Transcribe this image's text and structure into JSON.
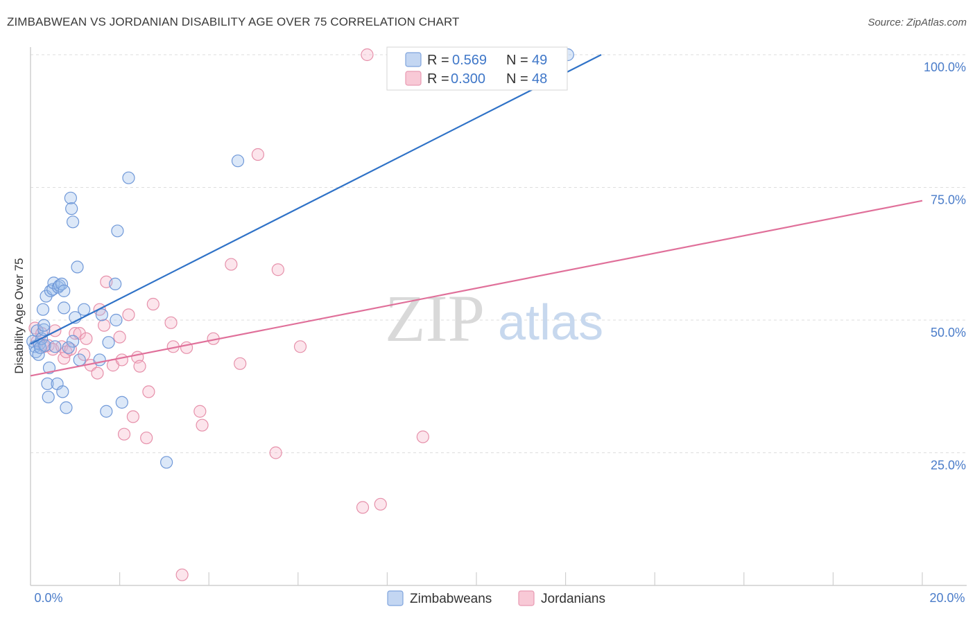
{
  "header": {
    "title": "ZIMBABWEAN VS JORDANIAN DISABILITY AGE OVER 75 CORRELATION CHART",
    "source": "Source: ZipAtlas.com"
  },
  "watermark": {
    "zip": "ZIP",
    "atlas": "atlas"
  },
  "legend_top": {
    "rows": [
      {
        "r_label": "R = ",
        "r_value": "0.569",
        "n_label": "N = ",
        "n_value": "49"
      },
      {
        "r_label": "R = ",
        "r_value": "0.300",
        "n_label": "N = ",
        "n_value": "48"
      }
    ]
  },
  "legend_bottom": {
    "items": [
      "Zimbabweans",
      "Jordanians"
    ]
  },
  "chart_data": {
    "type": "scatter",
    "title": "ZIMBABWEAN VS JORDANIAN DISABILITY AGE OVER 75 CORRELATION CHART",
    "xlabel": "",
    "ylabel": "Disability Age Over 75",
    "xlim": [
      0,
      20
    ],
    "ylim": [
      0,
      100
    ],
    "x_tick_labels": [
      "0.0%",
      "20.0%"
    ],
    "y_tick_values": [
      25,
      50,
      75,
      100
    ],
    "y_tick_labels": [
      "25.0%",
      "50.0%",
      "75.0%",
      "100.0%"
    ],
    "colors": {
      "zimbabweans": "#5b8fd6",
      "jordanians": "#e8839f",
      "zim_line": "#2f72c7",
      "jor_line": "#e0709a"
    },
    "series": [
      {
        "name": "Zimbabweans",
        "R": 0.569,
        "N": 49,
        "trend": {
          "x": [
            0,
            12.8
          ],
          "y": [
            45.5,
            100
          ]
        },
        "points": [
          [
            0.05,
            46
          ],
          [
            0.1,
            45
          ],
          [
            0.12,
            44
          ],
          [
            0.15,
            48
          ],
          [
            0.18,
            43.5
          ],
          [
            0.2,
            45.5
          ],
          [
            0.22,
            44.8
          ],
          [
            0.25,
            46.5
          ],
          [
            0.28,
            52
          ],
          [
            0.3,
            48.2
          ],
          [
            0.32,
            45.2
          ],
          [
            0.35,
            54.5
          ],
          [
            0.38,
            38
          ],
          [
            0.4,
            35.5
          ],
          [
            0.42,
            41
          ],
          [
            0.45,
            55.5
          ],
          [
            0.5,
            55.8
          ],
          [
            0.52,
            57
          ],
          [
            0.55,
            45
          ],
          [
            0.6,
            38
          ],
          [
            0.62,
            56.2
          ],
          [
            0.65,
            56.5
          ],
          [
            0.7,
            56.8
          ],
          [
            0.72,
            36.5
          ],
          [
            0.75,
            55.5
          ],
          [
            0.75,
            52.3
          ],
          [
            0.8,
            33.5
          ],
          [
            0.9,
            73
          ],
          [
            0.92,
            71
          ],
          [
            0.95,
            68.5
          ],
          [
            0.95,
            46
          ],
          [
            1.0,
            50.5
          ],
          [
            1.05,
            60
          ],
          [
            1.1,
            42.5
          ],
          [
            1.2,
            52
          ],
          [
            1.55,
            42.5
          ],
          [
            1.6,
            51
          ],
          [
            1.7,
            32.8
          ],
          [
            1.75,
            45.8
          ],
          [
            1.9,
            56.8
          ],
          [
            1.92,
            50
          ],
          [
            1.95,
            66.8
          ],
          [
            2.05,
            34.5
          ],
          [
            2.2,
            76.8
          ],
          [
            3.05,
            23.2
          ],
          [
            4.65,
            80
          ],
          [
            12.05,
            100
          ],
          [
            0.85,
            44.8
          ],
          [
            0.3,
            49
          ]
        ]
      },
      {
        "name": "Jordanians",
        "R": 0.3,
        "N": 48,
        "trend": {
          "x": [
            0,
            20
          ],
          "y": [
            39.5,
            72.5
          ]
        },
        "points": [
          [
            0.1,
            48.5
          ],
          [
            0.15,
            46
          ],
          [
            0.25,
            47.5
          ],
          [
            0.3,
            45
          ],
          [
            0.4,
            45.2
          ],
          [
            0.5,
            44.5
          ],
          [
            0.55,
            48
          ],
          [
            0.7,
            45
          ],
          [
            0.75,
            42.8
          ],
          [
            0.8,
            44
          ],
          [
            0.9,
            44.5
          ],
          [
            1.0,
            47.5
          ],
          [
            1.1,
            47.5
          ],
          [
            1.2,
            43.5
          ],
          [
            1.25,
            46.5
          ],
          [
            1.35,
            41.5
          ],
          [
            1.5,
            40
          ],
          [
            1.55,
            52
          ],
          [
            1.65,
            49
          ],
          [
            1.7,
            57.2
          ],
          [
            1.85,
            41.5
          ],
          [
            2.0,
            46.8
          ],
          [
            2.05,
            42.5
          ],
          [
            2.1,
            28.5
          ],
          [
            2.2,
            51
          ],
          [
            2.3,
            31.8
          ],
          [
            2.4,
            43
          ],
          [
            2.45,
            41.3
          ],
          [
            2.6,
            27.8
          ],
          [
            2.65,
            36.5
          ],
          [
            2.75,
            53
          ],
          [
            3.15,
            49.5
          ],
          [
            3.2,
            45
          ],
          [
            3.4,
            2
          ],
          [
            3.5,
            44.8
          ],
          [
            3.8,
            32.8
          ],
          [
            3.85,
            30.2
          ],
          [
            4.1,
            46.5
          ],
          [
            4.5,
            60.5
          ],
          [
            4.7,
            41.8
          ],
          [
            5.1,
            81.2
          ],
          [
            5.5,
            25
          ],
          [
            5.55,
            59.5
          ],
          [
            6.05,
            45
          ],
          [
            7.45,
            14.7
          ],
          [
            7.55,
            100
          ],
          [
            7.85,
            15.3
          ],
          [
            8.8,
            28
          ]
        ]
      }
    ]
  }
}
